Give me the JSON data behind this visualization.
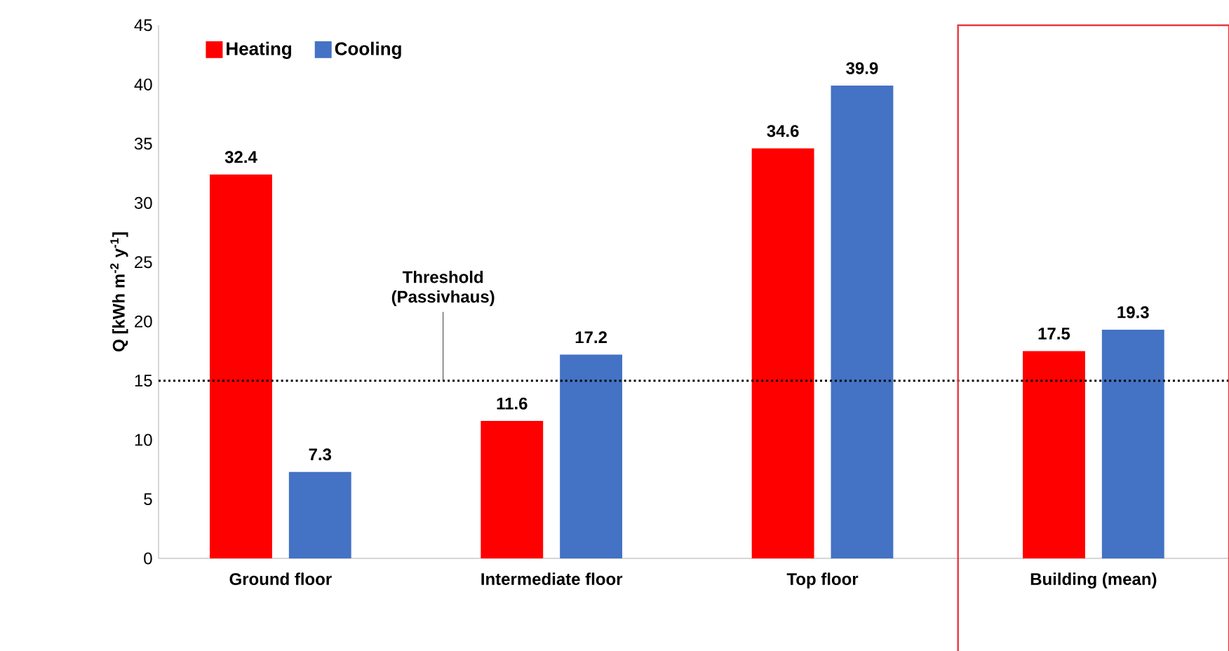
{
  "chart_data": {
    "type": "bar",
    "ylabel": "Q [kWh m$^{-2}$ y$^{-1}$]",
    "categories": [
      "Ground floor",
      "Intermediate floor",
      "Top floor",
      "Building (mean)"
    ],
    "series": [
      {
        "name": "Heating",
        "color": "#ff0000",
        "values": [
          32.4,
          11.6,
          34.6,
          17.5
        ]
      },
      {
        "name": "Cooling",
        "color": "#4472c4",
        "values": [
          7.3,
          17.2,
          39.9,
          19.3
        ]
      }
    ],
    "ylim": [
      0,
      45
    ],
    "yticks": [
      0,
      5,
      10,
      15,
      20,
      25,
      30,
      35,
      40,
      45
    ],
    "data_labels": true,
    "legend": "top left",
    "grid": false,
    "ref_lines": [
      {
        "axis": "y",
        "value": 15,
        "label": "Threshold (Passivhaus)",
        "line_style": "dotted",
        "color": "#000000"
      }
    ]
  }
}
